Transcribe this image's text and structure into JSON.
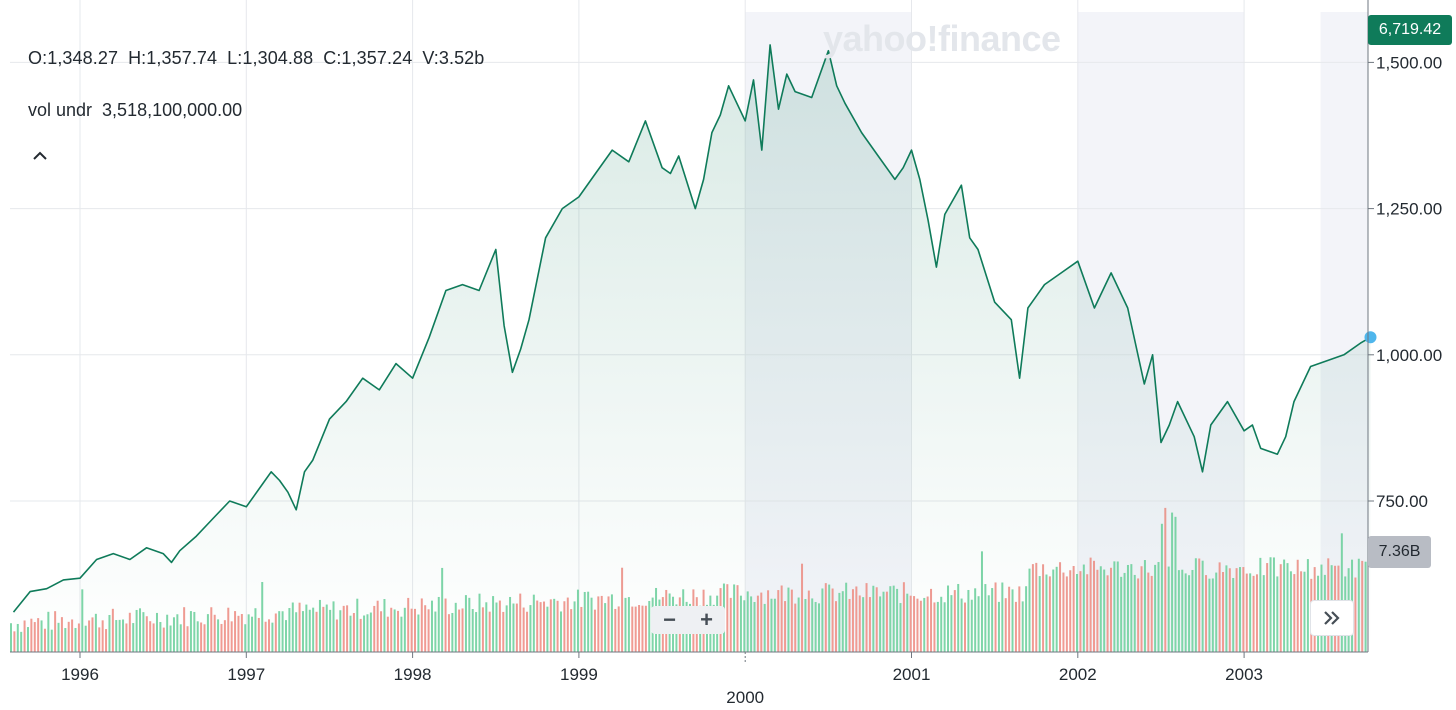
{
  "header": {
    "ohlc": [
      "O:1,348.27",
      "H:1,357.74",
      "L:1,304.88",
      "C:1,357.24",
      "V:3.52b"
    ],
    "vol_label": "vol undr",
    "vol_value": "3,518,100,000.00",
    "collapse_icon": "chevron-up-icon"
  },
  "watermark": "yahoo!finance",
  "current_price_label": "6,719.42",
  "current_volume_label": "7.36B",
  "controls": {
    "zoom_out": "−",
    "zoom_in": "+",
    "expand_icon": "double-chevron-right-icon"
  },
  "colors": {
    "line": "#0f7b5a",
    "vol_up": "#7fd6a9",
    "vol_down": "#f19b93",
    "shade": "#f3f4f9",
    "marker": "#4fb6ec"
  },
  "chart_data": {
    "type": "area",
    "x_ticks": [
      "1996",
      "1997",
      "1998",
      "1999",
      "2000",
      "2001",
      "2002",
      "2003"
    ],
    "y_ticks": [
      "750.00",
      "1,000.00",
      "1,250.00",
      "1,500.00"
    ],
    "ylim": [
      500,
      1570
    ],
    "xlim": [
      1995.6,
      2003.76
    ],
    "shaded_periods": [
      [
        2000.0,
        2001.0
      ],
      [
        2002.0,
        2003.0
      ],
      [
        2003.46,
        2003.76
      ]
    ],
    "series": [
      {
        "x": [
          1995.6,
          1995.7,
          1995.8,
          1995.9,
          1996.0,
          1996.1,
          1996.2,
          1996.3,
          1996.4,
          1996.5,
          1996.55,
          1996.6,
          1996.7,
          1996.8,
          1996.9,
          1997.0,
          1997.1,
          1997.15,
          1997.2,
          1997.25,
          1997.3,
          1997.35,
          1997.4,
          1997.5,
          1997.6,
          1997.7,
          1997.8,
          1997.9,
          1998.0,
          1998.1,
          1998.2,
          1998.3,
          1998.4,
          1998.5,
          1998.55,
          1998.6,
          1998.65,
          1998.7,
          1998.8,
          1998.9,
          1999.0,
          1999.1,
          1999.2,
          1999.3,
          1999.4,
          1999.5,
          1999.55,
          1999.6,
          1999.7,
          1999.75,
          1999.8,
          1999.85,
          1999.9,
          2000.0,
          2000.05,
          2000.1,
          2000.15,
          2000.2,
          2000.25,
          2000.3,
          2000.4,
          2000.5,
          2000.55,
          2000.6,
          2000.7,
          2000.8,
          2000.9,
          2000.95,
          2001.0,
          2001.05,
          2001.1,
          2001.15,
          2001.2,
          2001.3,
          2001.35,
          2001.4,
          2001.5,
          2001.6,
          2001.65,
          2001.7,
          2001.75,
          2001.8,
          2001.9,
          2002.0,
          2002.1,
          2002.2,
          2002.3,
          2002.4,
          2002.45,
          2002.5,
          2002.55,
          2002.6,
          2002.7,
          2002.75,
          2002.8,
          2002.9,
          2003.0,
          2003.05,
          2003.1,
          2003.2,
          2003.25,
          2003.3,
          2003.4,
          2003.5,
          2003.6,
          2003.7,
          2003.76
        ],
        "values": [
          560,
          595,
          600,
          615,
          618,
          650,
          660,
          650,
          670,
          660,
          645,
          665,
          690,
          720,
          750,
          740,
          780,
          800,
          785,
          765,
          735,
          800,
          820,
          890,
          920,
          960,
          940,
          985,
          960,
          1030,
          1110,
          1120,
          1110,
          1180,
          1050,
          970,
          1010,
          1060,
          1200,
          1250,
          1270,
          1310,
          1350,
          1330,
          1400,
          1320,
          1310,
          1340,
          1250,
          1300,
          1380,
          1410,
          1460,
          1400,
          1470,
          1350,
          1530,
          1420,
          1480,
          1450,
          1440,
          1520,
          1460,
          1430,
          1380,
          1340,
          1300,
          1320,
          1350,
          1300,
          1230,
          1150,
          1240,
          1290,
          1200,
          1180,
          1090,
          1060,
          960,
          1080,
          1100,
          1120,
          1140,
          1160,
          1080,
          1140,
          1080,
          950,
          1000,
          850,
          880,
          920,
          860,
          800,
          880,
          920,
          870,
          880,
          840,
          830,
          860,
          920,
          980,
          990,
          1000,
          1020,
          1030
        ]
      }
    ],
    "volume": {
      "unit": "B",
      "start": 1995.6,
      "end": 2003.76
    }
  }
}
